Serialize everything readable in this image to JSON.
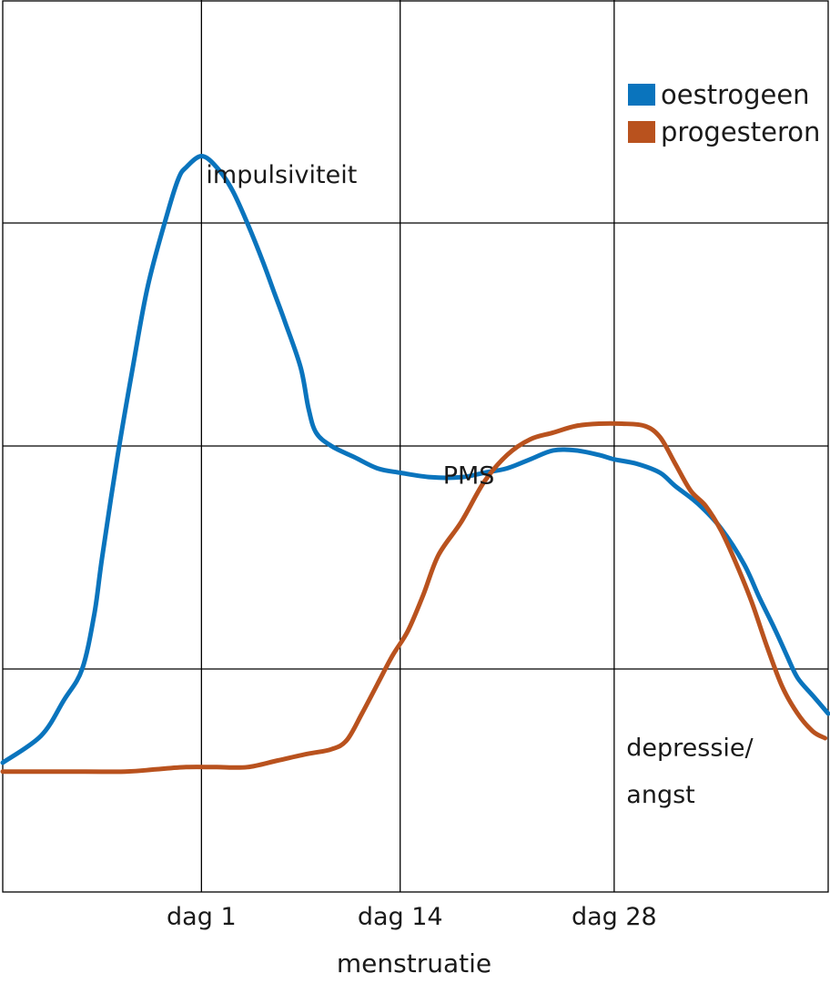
{
  "chart_data": {
    "type": "line",
    "title": "",
    "xlabel": "menstruatie",
    "ylabel": "",
    "xticks": [
      {
        "value": 1,
        "label": "dag 1"
      },
      {
        "value": 14,
        "label": "dag 14"
      },
      {
        "value": 28,
        "label": "dag 28"
      }
    ],
    "xlim": [
      -12,
      42
    ],
    "ylim": [
      0,
      4
    ],
    "grid": true,
    "legend_position": "top-right",
    "series": [
      {
        "name": "oestrogeen",
        "color": "#0a74bd",
        "points": [
          [
            -12,
            0.58
          ],
          [
            -9.5,
            0.7
          ],
          [
            -8,
            0.86
          ],
          [
            -6.8,
            1.0
          ],
          [
            -6,
            1.25
          ],
          [
            -5.5,
            1.5
          ],
          [
            -4.5,
            1.95
          ],
          [
            -3.5,
            2.35
          ],
          [
            -2.5,
            2.72
          ],
          [
            -1.2,
            3.05
          ],
          [
            -0.5,
            3.2
          ],
          [
            0,
            3.25
          ],
          [
            1,
            3.3
          ],
          [
            2,
            3.25
          ],
          [
            3,
            3.15
          ],
          [
            4,
            3.0
          ],
          [
            5,
            2.83
          ],
          [
            5.8,
            2.68
          ],
          [
            6.5,
            2.55
          ],
          [
            7.5,
            2.35
          ],
          [
            8,
            2.17
          ],
          [
            8.5,
            2.06
          ],
          [
            9.5,
            2.0
          ],
          [
            11,
            1.95
          ],
          [
            12.5,
            1.9
          ],
          [
            14,
            1.88
          ],
          [
            16,
            1.86
          ],
          [
            18,
            1.86
          ],
          [
            19.5,
            1.88
          ],
          [
            21,
            1.9
          ],
          [
            22.5,
            1.94
          ],
          [
            24,
            1.98
          ],
          [
            25.5,
            1.98
          ],
          [
            27,
            1.96
          ],
          [
            28,
            1.94
          ],
          [
            29.5,
            1.92
          ],
          [
            31,
            1.88
          ],
          [
            32,
            1.82
          ],
          [
            33.5,
            1.74
          ],
          [
            35,
            1.63
          ],
          [
            36.5,
            1.47
          ],
          [
            37.5,
            1.32
          ],
          [
            38.5,
            1.18
          ],
          [
            39.3,
            1.06
          ],
          [
            40,
            0.96
          ],
          [
            41,
            0.88
          ],
          [
            42,
            0.8
          ]
        ]
      },
      {
        "name": "progesteron",
        "color": "#b9521e",
        "points": [
          [
            -12,
            0.54
          ],
          [
            -8,
            0.54
          ],
          [
            -4,
            0.54
          ],
          [
            -2,
            0.55
          ],
          [
            0,
            0.56
          ],
          [
            2,
            0.56
          ],
          [
            4,
            0.56
          ],
          [
            6,
            0.59
          ],
          [
            8,
            0.62
          ],
          [
            9.5,
            0.64
          ],
          [
            10.5,
            0.68
          ],
          [
            11.5,
            0.8
          ],
          [
            12.5,
            0.93
          ],
          [
            13.5,
            1.06
          ],
          [
            14.5,
            1.17
          ],
          [
            15.5,
            1.33
          ],
          [
            16.5,
            1.51
          ],
          [
            18,
            1.66
          ],
          [
            19.5,
            1.84
          ],
          [
            21,
            1.96
          ],
          [
            22.5,
            2.03
          ],
          [
            24,
            2.06
          ],
          [
            25.5,
            2.09
          ],
          [
            27,
            2.1
          ],
          [
            28.5,
            2.1
          ],
          [
            30,
            2.09
          ],
          [
            31,
            2.04
          ],
          [
            32,
            1.92
          ],
          [
            33,
            1.8
          ],
          [
            34,
            1.73
          ],
          [
            35,
            1.62
          ],
          [
            36,
            1.47
          ],
          [
            37,
            1.3
          ],
          [
            38,
            1.1
          ],
          [
            39,
            0.92
          ],
          [
            40,
            0.8
          ],
          [
            41,
            0.72
          ],
          [
            41.8,
            0.69
          ]
        ]
      }
    ],
    "annotations": [
      {
        "text": "impulsiviteit",
        "x": 1.3,
        "y": 3.18
      },
      {
        "text": "PMS",
        "x": 16.8,
        "y": 1.83
      },
      {
        "text": "depressie/",
        "x": 28.8,
        "y": 0.61
      },
      {
        "text": "angst",
        "x": 28.8,
        "y": 0.4
      }
    ]
  }
}
